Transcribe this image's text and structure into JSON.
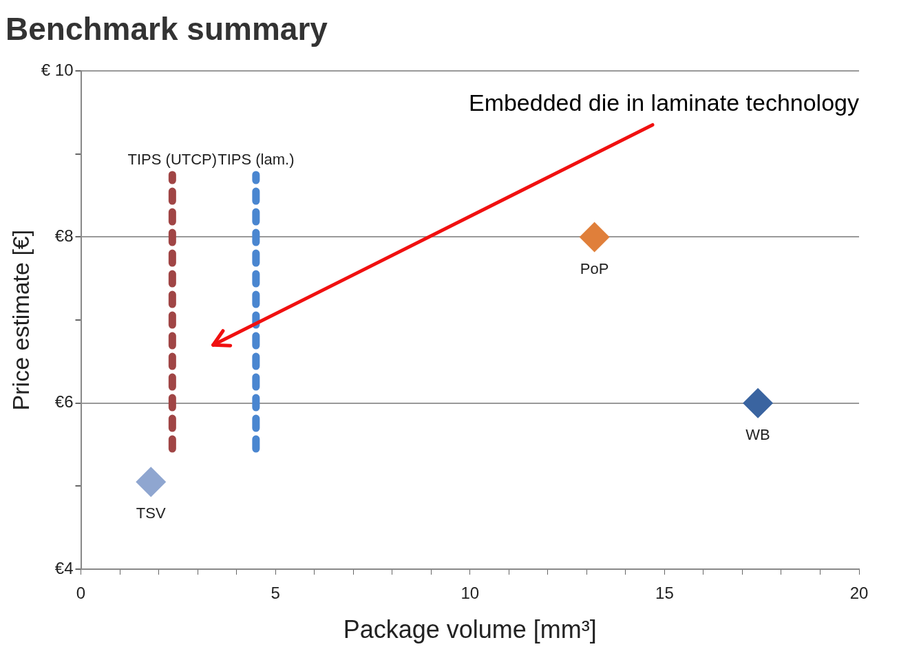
{
  "chart_data": {
    "type": "scatter",
    "title": "Benchmark summary",
    "xlabel": "Package volume [mm³]",
    "ylabel": "Price estimate [€]",
    "xlim": [
      0,
      20
    ],
    "xticks": [
      0,
      {
        "value": 1,
        "label": null
      },
      {
        "value": 2,
        "label": null
      },
      {
        "value": 3,
        "label": null
      },
      {
        "value": 4,
        "label": null
      },
      5,
      {
        "value": 6,
        "label": null
      },
      {
        "value": 7,
        "label": null
      },
      {
        "value": 8,
        "label": null
      },
      {
        "value": 9,
        "label": null
      },
      10,
      {
        "value": 11,
        "label": null
      },
      {
        "value": 12,
        "label": null
      },
      {
        "value": 13,
        "label": null
      },
      {
        "value": 14,
        "label": null
      },
      15,
      {
        "value": 16,
        "label": null
      },
      {
        "value": 17,
        "label": null
      },
      {
        "value": 18,
        "label": null
      },
      {
        "value": 19,
        "label": null
      },
      20
    ],
    "ylim": [
      4,
      10
    ],
    "yticks": [
      {
        "value": 4,
        "label": "€4"
      },
      {
        "value": 5,
        "label": null
      },
      {
        "value": 6,
        "label": "€6"
      },
      {
        "value": 7,
        "label": null
      },
      {
        "value": 8,
        "label": "€8"
      },
      {
        "value": 9,
        "label": null
      },
      {
        "value": 10,
        "label": "€ 10"
      }
    ],
    "grid": "y",
    "legend": false,
    "marker": "diamond",
    "series": [
      {
        "name": "TIPS (UTCP)",
        "type": "line",
        "line_style": "dashed",
        "marker": "none",
        "color": "#a04545",
        "x": [
          2.35,
          2.35
        ],
        "values": [
          5.45,
          8.75
        ]
      },
      {
        "name": "TIPS (lam.)",
        "type": "line",
        "line_style": "dashed",
        "marker": "none",
        "color": "#4a86d0",
        "x": [
          4.5,
          4.5
        ],
        "values": [
          5.45,
          8.75
        ]
      },
      {
        "name": "TSV",
        "color": "#8fa6d0",
        "x": [
          1.8
        ],
        "values": [
          5.05
        ]
      },
      {
        "name": "PoP",
        "color": "#e07f3a",
        "x": [
          13.2
        ],
        "values": [
          8.0
        ]
      },
      {
        "name": "WB",
        "color": "#3a64a0",
        "x": [
          17.4
        ],
        "values": [
          6.0
        ]
      }
    ],
    "annotations": [
      "Embedded die in laminate technology"
    ]
  }
}
